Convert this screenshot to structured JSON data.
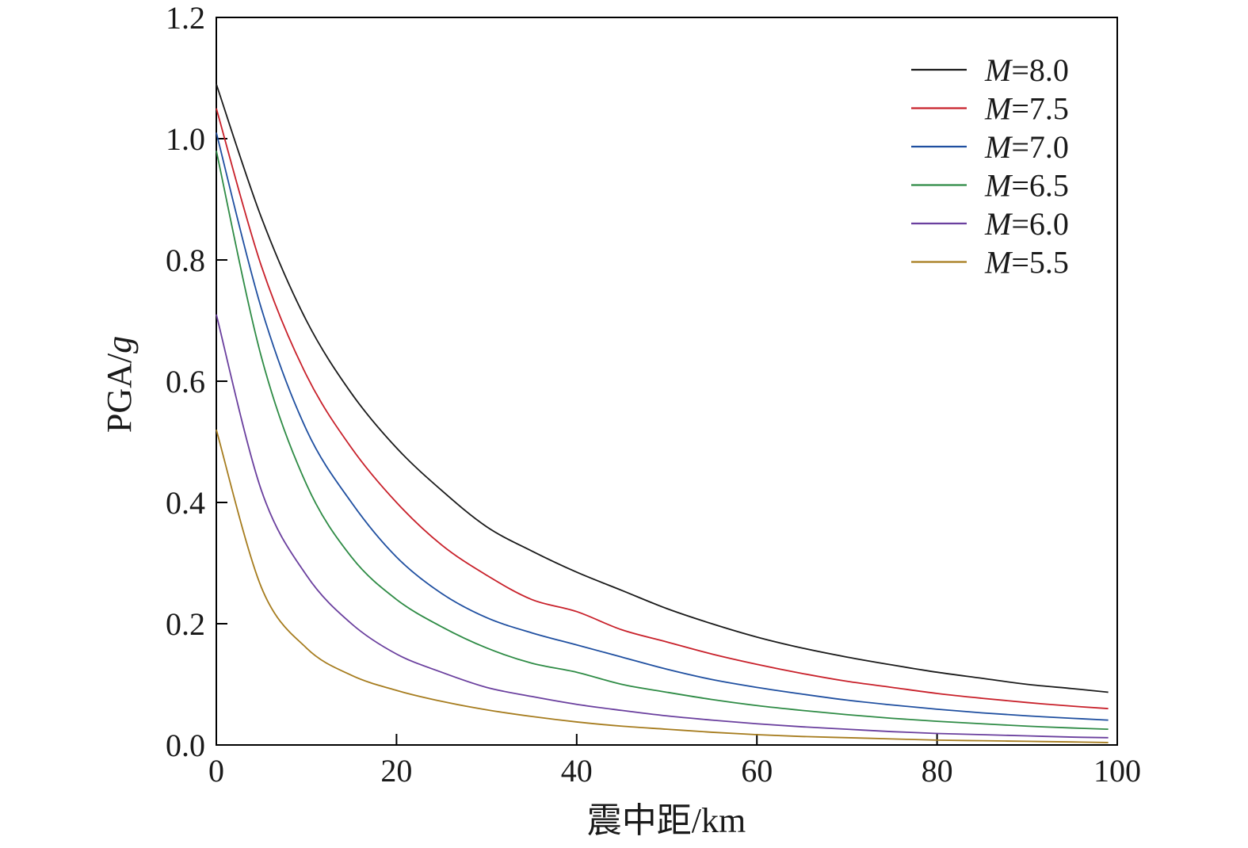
{
  "chart_data": {
    "type": "line",
    "xlabel": "震中距/km",
    "ylabel_prefix": "PGA/",
    "ylabel_var": "g",
    "xlim": [
      0,
      100
    ],
    "ylim": [
      0,
      1.2
    ],
    "xticks": [
      0,
      20,
      40,
      60,
      80,
      100
    ],
    "yticks": [
      0.0,
      0.2,
      0.4,
      0.6,
      0.8,
      1.0,
      1.2
    ],
    "xtick_labels": [
      "0",
      "20",
      "40",
      "60",
      "80",
      "100"
    ],
    "ytick_labels": [
      "0.0",
      "0.2",
      "0.4",
      "0.6",
      "0.8",
      "1.0",
      "1.2"
    ],
    "grid": false,
    "legend_position": "top-right",
    "x": [
      0,
      5,
      10,
      15,
      20,
      25,
      30,
      35,
      40,
      45,
      50,
      55,
      60,
      65,
      70,
      75,
      80,
      85,
      90,
      95,
      99
    ],
    "series": [
      {
        "name_var": "M",
        "name_val": "=8.0",
        "color": "#1a1a1a",
        "values": [
          1.09,
          0.87,
          0.7,
          0.58,
          0.49,
          0.42,
          0.36,
          0.32,
          0.285,
          0.255,
          0.225,
          0.2,
          0.178,
          0.16,
          0.145,
          0.132,
          0.12,
          0.11,
          0.1,
          0.093,
          0.087
        ]
      },
      {
        "name_var": "M",
        "name_val": "=7.5",
        "color": "#c8202a",
        "values": [
          1.05,
          0.79,
          0.61,
          0.49,
          0.4,
          0.33,
          0.28,
          0.24,
          0.22,
          0.19,
          0.17,
          0.15,
          0.133,
          0.118,
          0.105,
          0.095,
          0.085,
          0.077,
          0.07,
          0.064,
          0.06
        ]
      },
      {
        "name_var": "M",
        "name_val": "=7.0",
        "color": "#1f4fa0",
        "values": [
          1.01,
          0.72,
          0.52,
          0.4,
          0.31,
          0.25,
          0.21,
          0.185,
          0.165,
          0.145,
          0.125,
          0.108,
          0.095,
          0.084,
          0.074,
          0.066,
          0.059,
          0.053,
          0.048,
          0.044,
          0.041
        ]
      },
      {
        "name_var": "M",
        "name_val": "=6.5",
        "color": "#2e8b45",
        "values": [
          0.98,
          0.64,
          0.43,
          0.31,
          0.24,
          0.195,
          0.16,
          0.135,
          0.12,
          0.1,
          0.087,
          0.075,
          0.065,
          0.057,
          0.05,
          0.044,
          0.039,
          0.035,
          0.031,
          0.028,
          0.026
        ]
      },
      {
        "name_var": "M",
        "name_val": "=6.0",
        "color": "#6a3f9e",
        "values": [
          0.71,
          0.42,
          0.28,
          0.2,
          0.15,
          0.12,
          0.095,
          0.08,
          0.067,
          0.057,
          0.048,
          0.041,
          0.035,
          0.03,
          0.026,
          0.022,
          0.019,
          0.017,
          0.015,
          0.013,
          0.012
        ]
      },
      {
        "name_var": "M",
        "name_val": "=5.5",
        "color": "#a67c1e",
        "values": [
          0.52,
          0.26,
          0.16,
          0.115,
          0.09,
          0.072,
          0.058,
          0.047,
          0.038,
          0.031,
          0.026,
          0.021,
          0.017,
          0.014,
          0.012,
          0.01,
          0.008,
          0.007,
          0.006,
          0.005,
          0.004
        ]
      }
    ]
  }
}
